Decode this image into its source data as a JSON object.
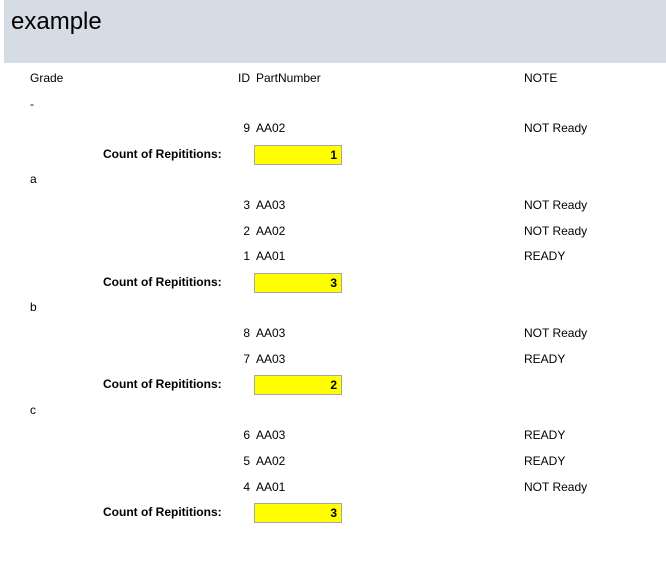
{
  "report": {
    "title": "example",
    "headers": {
      "grade": "Grade",
      "id": "ID",
      "part_number": "PartNumber",
      "note": "NOTE"
    },
    "groups": [
      {
        "grade": "-",
        "rows": [
          {
            "id": "9",
            "part": "AA02",
            "note": "NOT Ready"
          }
        ],
        "count_label": "Count of Repititions:",
        "count": "1"
      },
      {
        "grade": "a",
        "rows": [
          {
            "id": "3",
            "part": "AA03",
            "note": "NOT Ready"
          },
          {
            "id": "2",
            "part": "AA02",
            "note": "NOT Ready"
          },
          {
            "id": "1",
            "part": "AA01",
            "note": "READY"
          }
        ],
        "count_label": "Count of Repititions:",
        "count": "3"
      },
      {
        "grade": "b",
        "rows": [
          {
            "id": "8",
            "part": "AA03",
            "note": "NOT Ready"
          },
          {
            "id": "7",
            "part": "AA03",
            "note": "READY"
          }
        ],
        "count_label": "Count of Repititions:",
        "count": "2"
      },
      {
        "grade": "c",
        "rows": [
          {
            "id": "6",
            "part": "AA03",
            "note": "READY"
          },
          {
            "id": "5",
            "part": "AA02",
            "note": "READY"
          },
          {
            "id": "4",
            "part": "AA01",
            "note": "NOT Ready"
          }
        ],
        "count_label": "Count of Repititions:",
        "count": "3"
      }
    ]
  },
  "colors": {
    "title_band": "#d6dce4",
    "count_highlight": "#ffff00"
  }
}
